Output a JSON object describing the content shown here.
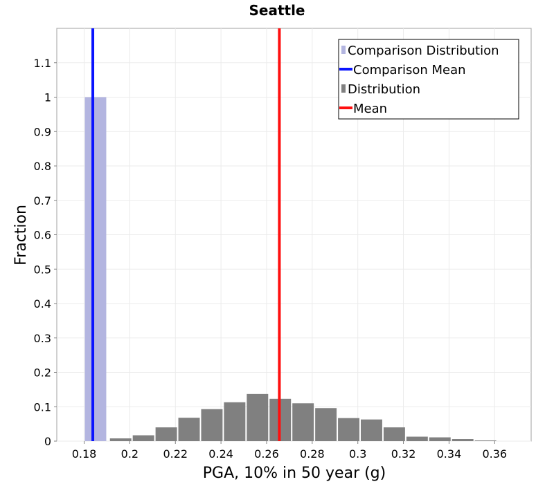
{
  "chart_data": {
    "type": "bar",
    "title": "Seattle",
    "xlabel": "PGA, 10% in 50 year (g)",
    "ylabel": "Fraction",
    "xlim": [
      0.168,
      0.376
    ],
    "ylim": [
      0,
      1.2
    ],
    "x_ticks": [
      "0.18",
      "0.2",
      "0.22",
      "0.24",
      "0.26",
      "0.28",
      "0.3",
      "0.32",
      "0.34",
      "0.36"
    ],
    "x_tick_values": [
      0.18,
      0.2,
      0.22,
      0.24,
      0.26,
      0.28,
      0.3,
      0.32,
      0.34,
      0.36
    ],
    "y_ticks": [
      "0",
      "0.1",
      "0.2",
      "0.3",
      "0.4",
      "0.5",
      "0.6",
      "0.7",
      "0.8",
      "0.9",
      "1",
      "1.1"
    ],
    "y_tick_values": [
      0,
      0.1,
      0.2,
      0.3,
      0.4,
      0.5,
      0.6,
      0.7,
      0.8,
      0.9,
      1,
      1.1
    ],
    "grid": true,
    "legend_position": "top-right",
    "bin_width": 0.01,
    "series": [
      {
        "name": "Distribution",
        "kind": "bars",
        "color": "#808080",
        "x": [
          0.196,
          0.206,
          0.216,
          0.226,
          0.236,
          0.246,
          0.256,
          0.266,
          0.276,
          0.286,
          0.296,
          0.306,
          0.316,
          0.326,
          0.336,
          0.346,
          0.356
        ],
        "values": [
          0.008,
          0.017,
          0.04,
          0.068,
          0.093,
          0.113,
          0.137,
          0.123,
          0.11,
          0.096,
          0.067,
          0.063,
          0.04,
          0.013,
          0.011,
          0.006,
          0.002
        ]
      },
      {
        "name": "Comparison Distribution",
        "kind": "bars",
        "color": "#b3b5e0",
        "x": [
          0.185
        ],
        "values": [
          1.0
        ]
      },
      {
        "name": "Comparison Mean",
        "kind": "vline",
        "color": "#0a14ff",
        "x": 0.1838
      },
      {
        "name": "Mean",
        "kind": "vline",
        "color": "#ff0f0f",
        "x": 0.2656
      }
    ],
    "legend_order": [
      "Comparison Distribution",
      "Comparison Mean",
      "Distribution",
      "Mean"
    ]
  }
}
